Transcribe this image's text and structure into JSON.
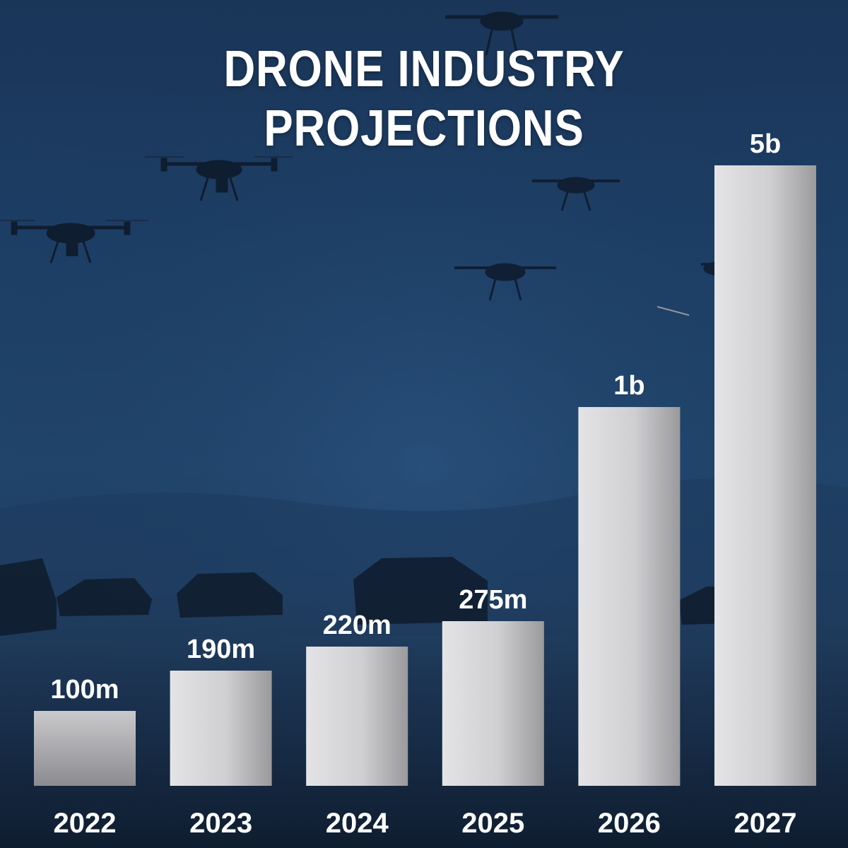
{
  "title": "DRONE INDUSTRY PROJECTIONS",
  "colors": {
    "background_top": "#1a3558",
    "background_bottom": "#122339",
    "bar_light": "#e2e2e4",
    "bar_dark": "#8f8f92",
    "text": "#ffffff"
  },
  "chart_data": {
    "type": "bar",
    "title": "DRONE INDUSTRY PROJECTIONS",
    "xlabel": "",
    "ylabel": "",
    "categories": [
      "2022",
      "2023",
      "2024",
      "2025",
      "2026",
      "2027"
    ],
    "values": [
      100,
      190,
      220,
      275,
      1000,
      5000
    ],
    "value_labels": [
      "100m",
      "190m",
      "220m",
      "275m",
      "1b",
      "5b"
    ],
    "unit": "millions",
    "y_axis_shown": false,
    "grid": false,
    "legend": "none",
    "note": "Bar heights are drawn on a non-linear visual scale in the original; labels carry the values."
  }
}
